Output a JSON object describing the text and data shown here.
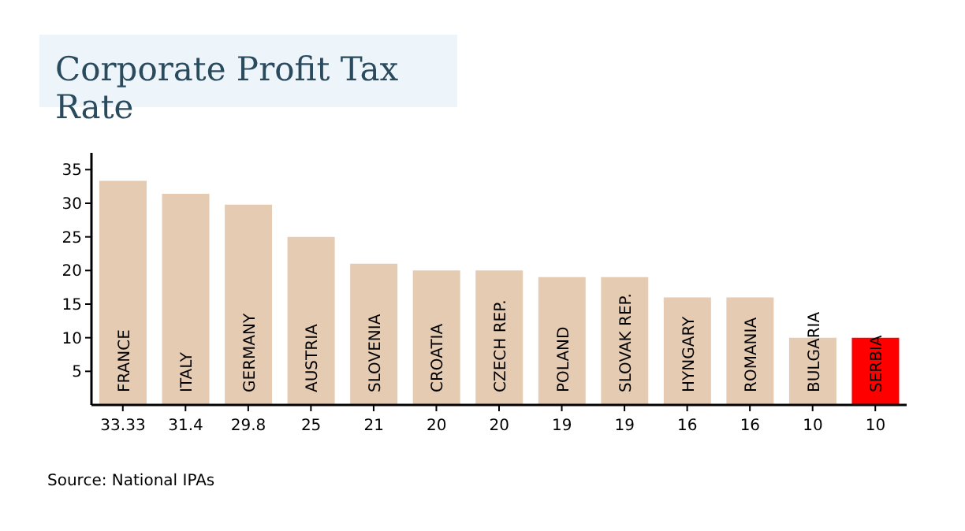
{
  "chart_data": {
    "type": "bar",
    "title": "Corporate Profit Tax Rate",
    "categories": [
      "FRANCE",
      "ITALY",
      "GERMANY",
      "AUSTRIA",
      "SLOVENIA",
      "CROATIA",
      "CZECH REP.",
      "POLAND",
      "SLOVAK REP.",
      "HYNGARY",
      "ROMANIA",
      "BULGARIA",
      "SERBIA"
    ],
    "values": [
      33.33,
      31.4,
      29.8,
      25,
      21,
      20,
      20,
      19,
      19,
      16,
      16,
      10,
      10
    ],
    "colors": [
      "#e6cbb3",
      "#e6cbb3",
      "#e6cbb3",
      "#e6cbb3",
      "#e6cbb3",
      "#e6cbb3",
      "#e6cbb3",
      "#e6cbb3",
      "#e6cbb3",
      "#e6cbb3",
      "#e6cbb3",
      "#e6cbb3",
      "#ff0000"
    ],
    "ylim": [
      0,
      37.5
    ],
    "yticks": [
      5,
      10,
      15,
      20,
      25,
      30,
      35
    ],
    "grid": false,
    "legend": false,
    "data_labels": true,
    "annotations": [
      "Source: National IPAs"
    ]
  }
}
